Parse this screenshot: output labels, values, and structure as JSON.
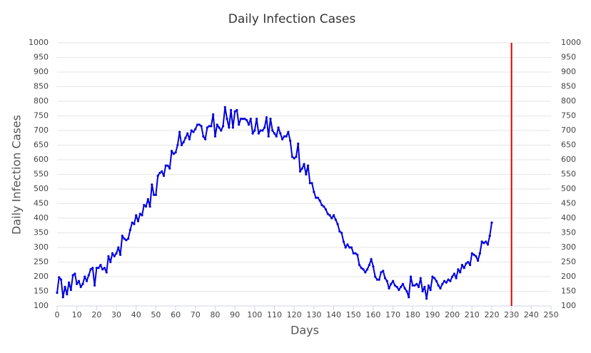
{
  "chart_data": {
    "type": "line",
    "title": "Daily Infection Cases",
    "xlabel": "Days",
    "ylabel": "Daily Infection Cases",
    "color": "#0000dd",
    "vline": 230,
    "vline_color": "#dd0000",
    "grid": true,
    "xlim": [
      0,
      250
    ],
    "xticks": [
      0,
      10,
      20,
      30,
      40,
      50,
      60,
      70,
      80,
      90,
      100,
      110,
      120,
      130,
      140,
      150,
      160,
      170,
      180,
      190,
      200,
      210,
      220,
      230,
      240,
      250
    ],
    "ylim": [
      100,
      1000
    ],
    "yticks": [
      100,
      150,
      200,
      250,
      300,
      350,
      400,
      450,
      500,
      550,
      600,
      650,
      700,
      750,
      800,
      850,
      900,
      950,
      1000
    ],
    "y2lim": [
      100,
      1000
    ],
    "y2ticks": [
      100,
      150,
      200,
      250,
      300,
      350,
      400,
      450,
      500,
      550,
      600,
      650,
      700,
      750,
      800,
      850,
      900,
      950,
      1000
    ],
    "x": [
      0,
      1,
      2,
      3,
      4,
      5,
      6,
      7,
      8,
      9,
      10,
      11,
      12,
      13,
      14,
      15,
      16,
      17,
      18,
      19,
      20,
      21,
      22,
      23,
      24,
      25,
      26,
      27,
      28,
      29,
      30,
      31,
      32,
      33,
      34,
      35,
      36,
      37,
      38,
      39,
      40,
      41,
      42,
      43,
      44,
      45,
      46,
      47,
      48,
      49,
      50,
      51,
      52,
      53,
      54,
      55,
      56,
      57,
      58,
      59,
      60,
      61,
      62,
      63,
      64,
      65,
      66,
      67,
      68,
      69,
      70,
      71,
      72,
      73,
      74,
      75,
      76,
      77,
      78,
      79,
      80,
      81,
      82,
      83,
      84,
      85,
      86,
      87,
      88,
      89,
      90,
      91,
      92,
      93,
      94,
      95,
      96,
      97,
      98,
      99,
      100,
      101,
      102,
      103,
      104,
      105,
      106,
      107,
      108,
      109,
      110,
      111,
      112,
      113,
      114,
      115,
      116,
      117,
      118,
      119,
      120,
      121,
      122,
      123,
      124,
      125,
      126,
      127,
      128,
      129,
      130,
      131,
      132,
      133,
      134,
      135,
      136,
      137,
      138,
      139,
      140,
      141,
      142,
      143,
      144,
      145,
      146,
      147,
      148,
      149,
      150,
      151,
      152,
      153,
      154,
      155,
      156,
      157,
      158,
      159,
      160,
      161,
      162,
      163,
      164,
      165,
      166,
      167,
      168,
      169,
      170,
      171,
      172,
      173,
      174,
      175,
      176,
      177,
      178,
      179,
      180,
      181,
      182,
      183,
      184,
      185,
      186,
      187,
      188,
      189,
      190,
      191,
      192,
      193,
      194,
      195,
      196,
      197,
      198,
      199,
      200,
      201,
      202,
      203,
      204,
      205,
      206,
      207,
      208,
      209,
      210,
      211,
      212,
      213,
      214,
      215,
      216,
      217,
      218,
      219,
      220
    ],
    "values": [
      145,
      198,
      190,
      130,
      165,
      140,
      180,
      155,
      205,
      210,
      175,
      185,
      165,
      175,
      200,
      185,
      205,
      225,
      230,
      170,
      230,
      230,
      240,
      225,
      230,
      215,
      270,
      250,
      280,
      270,
      280,
      300,
      275,
      340,
      330,
      325,
      330,
      360,
      385,
      380,
      410,
      390,
      415,
      410,
      445,
      440,
      465,
      440,
      515,
      480,
      480,
      545,
      555,
      560,
      545,
      580,
      580,
      570,
      630,
      620,
      625,
      650,
      695,
      650,
      660,
      675,
      690,
      670,
      700,
      695,
      705,
      720,
      720,
      715,
      680,
      670,
      710,
      715,
      715,
      755,
      680,
      720,
      710,
      700,
      715,
      780,
      740,
      710,
      770,
      710,
      765,
      770,
      720,
      740,
      740,
      740,
      735,
      720,
      740,
      690,
      700,
      740,
      690,
      700,
      700,
      710,
      745,
      680,
      740,
      700,
      690,
      680,
      710,
      690,
      670,
      680,
      680,
      695,
      665,
      610,
      605,
      610,
      655,
      560,
      570,
      585,
      550,
      580,
      520,
      520,
      490,
      470,
      470,
      460,
      445,
      440,
      430,
      415,
      410,
      400,
      410,
      395,
      380,
      355,
      350,
      320,
      300,
      310,
      300,
      300,
      280,
      280,
      275,
      240,
      230,
      225,
      215,
      225,
      240,
      260,
      235,
      200,
      190,
      190,
      215,
      220,
      195,
      185,
      160,
      175,
      185,
      170,
      165,
      155,
      165,
      175,
      160,
      150,
      130,
      200,
      170,
      170,
      175,
      165,
      195,
      150,
      165,
      125,
      170,
      155,
      200,
      195,
      185,
      170,
      160,
      175,
      185,
      180,
      190,
      185,
      200,
      210,
      195,
      225,
      215,
      240,
      230,
      245,
      250,
      240,
      280,
      275,
      270,
      255,
      280,
      320,
      315,
      320,
      310,
      340,
      385
    ]
  }
}
